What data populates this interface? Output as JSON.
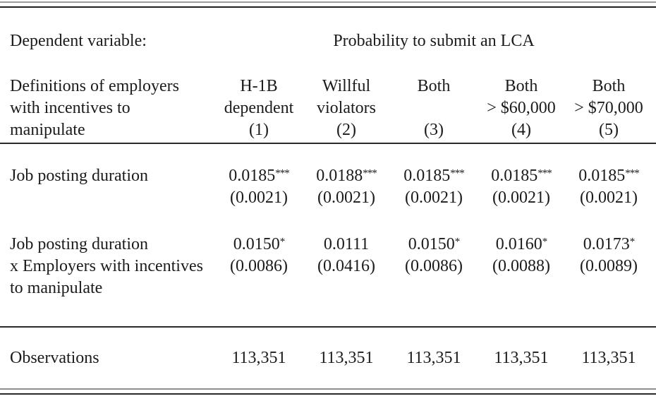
{
  "table": {
    "header": {
      "dependent_variable_label": "Dependent variable:",
      "dependent_variable_value": "Probability to submit an LCA"
    },
    "column_stub": {
      "line1": "Definitions of employers",
      "line2": "with incentives to",
      "line3": "manipulate"
    },
    "columns": [
      {
        "line1": "H-1B",
        "line2": "dependent",
        "number": "(1)"
      },
      {
        "line1": "Willful",
        "line2": "violators",
        "number": "(2)"
      },
      {
        "line1": "Both",
        "line2": "",
        "number": "(3)"
      },
      {
        "line1": "Both",
        "line2": "> $60,000",
        "number": "(4)"
      },
      {
        "line1": "Both",
        "line2": "> $70,000",
        "number": "(5)"
      }
    ],
    "coef_rows": [
      {
        "label_line1": "Job posting duration",
        "label_line2": "",
        "label_line3": "",
        "cells": [
          {
            "coef": "0.0185",
            "stars": "***",
            "se": "(0.0021)"
          },
          {
            "coef": "0.0188",
            "stars": "***",
            "se": "(0.0021)"
          },
          {
            "coef": "0.0185",
            "stars": "***",
            "se": "(0.0021)"
          },
          {
            "coef": "0.0185",
            "stars": "***",
            "se": "(0.0021)"
          },
          {
            "coef": "0.0185",
            "stars": "***",
            "se": "(0.0021)"
          }
        ]
      },
      {
        "label_line1": "Job posting duration",
        "label_line2": "x Employers with incentives",
        "label_line3": "to manipulate",
        "cells": [
          {
            "coef": "0.0150",
            "stars": "*",
            "se": "(0.0086)"
          },
          {
            "coef": "0.0111",
            "stars": "",
            "se": "(0.0416)"
          },
          {
            "coef": "0.0150",
            "stars": "*",
            "se": "(0.0086)"
          },
          {
            "coef": "0.0160",
            "stars": "*",
            "se": "(0.0088)"
          },
          {
            "coef": "0.0173",
            "stars": "*",
            "se": "(0.0089)"
          }
        ]
      }
    ],
    "footer": {
      "observations_label": "Observations",
      "observations": [
        "113,351",
        "113,351",
        "113,351",
        "113,351",
        "113,351"
      ]
    },
    "colors": {
      "text": "#1b1b1b",
      "rule_dark": "#2a2a2a",
      "rule_gray": "#9b9b9b",
      "background": "#ffffff"
    }
  }
}
